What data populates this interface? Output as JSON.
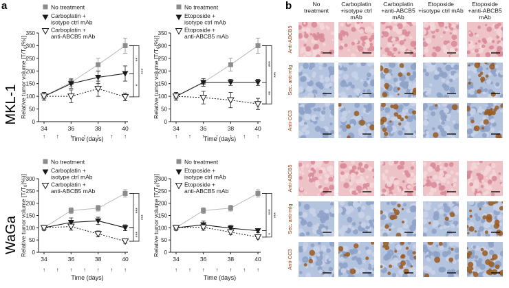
{
  "panel_labels": {
    "a": "a",
    "b": "b"
  },
  "rows": [
    {
      "name": "MKL-1"
    },
    {
      "name": "WaGa"
    }
  ],
  "axis": {
    "y_label_main": "Relative tumor volume [T/T",
    "y_label_sub": "0",
    "y_label_tail": "(%)]",
    "x_label": "Time (days)",
    "dose_marker": "↑"
  },
  "colors": {
    "no_treatment": "#8c8c8c",
    "isotype": "#1a1a1a",
    "anti": "#1a1a1a",
    "he_stain": "#e7a9b2",
    "hema_bg": "#9fb2d3",
    "dab": "#9a5a1e",
    "scale_bar": "#0a0a0a"
  },
  "significance": {
    "double": "**",
    "triple": "***",
    "single": "*"
  },
  "chart_data": [
    {
      "type": "line",
      "row": "MKL-1",
      "drug": "Carboplatin",
      "x": [
        34,
        36,
        38,
        40
      ],
      "xlim": [
        34,
        40
      ],
      "ylim": [
        0,
        350
      ],
      "xticks": [
        34,
        36,
        38,
        40
      ],
      "yticks": [
        0,
        50,
        100,
        150,
        200,
        250,
        300,
        350
      ],
      "dose_days": [
        34,
        35,
        36,
        37,
        38,
        39,
        40
      ],
      "series": [
        {
          "name": "No treatment",
          "values": [
            100,
            155,
            225,
            300
          ],
          "err": [
            15,
            15,
            25,
            30
          ],
          "marker": "square"
        },
        {
          "name": "Carboplatin + isotype ctrl mAb",
          "values": [
            100,
            150,
            175,
            190
          ],
          "err": [
            15,
            18,
            25,
            30
          ],
          "marker": "tri-down-filled"
        },
        {
          "name": "Carboplatin + anti-ABCB5 mAb",
          "values": [
            100,
            100,
            130,
            98
          ],
          "err": [
            15,
            25,
            30,
            15
          ],
          "marker": "tri-down-open"
        }
      ],
      "brackets": [
        {
          "from": "No treatment",
          "to": "Carboplatin + isotype ctrl mAb",
          "label": "**"
        },
        {
          "from": "No treatment",
          "to": "Carboplatin + anti-ABCB5 mAb",
          "label": "***"
        },
        {
          "from": "Carboplatin + isotype ctrl mAb",
          "to": "Carboplatin + anti-ABCB5 mAb",
          "label": "*"
        }
      ]
    },
    {
      "type": "line",
      "row": "MKL-1",
      "drug": "Etoposide",
      "x": [
        34,
        36,
        38,
        40
      ],
      "xlim": [
        34,
        40
      ],
      "ylim": [
        0,
        350
      ],
      "xticks": [
        34,
        36,
        38,
        40
      ],
      "yticks": [
        0,
        50,
        100,
        150,
        200,
        250,
        300,
        350
      ],
      "dose_days": [
        34,
        35,
        36,
        37,
        38,
        39,
        40
      ],
      "series": [
        {
          "name": "No treatment",
          "values": [
            100,
            155,
            225,
            300
          ],
          "err": [
            15,
            15,
            25,
            30
          ],
          "marker": "square"
        },
        {
          "name": "Etoposide + isotype ctrl mAb",
          "values": [
            100,
            155,
            155,
            155
          ],
          "err": [
            15,
            15,
            12,
            12
          ],
          "marker": "tri-down-filled"
        },
        {
          "name": "Etoposide + anti-ABCB5 mAb",
          "values": [
            100,
            95,
            85,
            70
          ],
          "err": [
            15,
            25,
            30,
            22
          ],
          "marker": "tri-down-open"
        }
      ],
      "brackets": [
        {
          "from": "No treatment",
          "to": "Etoposide + isotype ctrl mAb",
          "label": "***"
        },
        {
          "from": "No treatment",
          "to": "Etoposide + anti-ABCB5 mAb",
          "label": "***"
        },
        {
          "from": "Etoposide + isotype ctrl mAb",
          "to": "Etoposide + anti-ABCB5 mAb",
          "label": "**"
        }
      ]
    },
    {
      "type": "line",
      "row": "WaGa",
      "drug": "Carboplatin",
      "x": [
        34,
        36,
        38,
        40
      ],
      "xlim": [
        34,
        40
      ],
      "ylim": [
        0,
        300
      ],
      "xticks": [
        34,
        36,
        38,
        40
      ],
      "yticks": [
        0,
        50,
        100,
        150,
        200,
        250,
        300
      ],
      "dose_days": [
        34,
        35,
        36,
        37,
        38,
        39,
        40
      ],
      "series": [
        {
          "name": "No treatment",
          "values": [
            100,
            170,
            180,
            240
          ],
          "err": [
            10,
            12,
            12,
            15
          ],
          "marker": "square"
        },
        {
          "name": "Carboplatin + isotype ctrl mAb",
          "values": [
            100,
            122,
            128,
            100
          ],
          "err": [
            10,
            18,
            15,
            12
          ],
          "marker": "tri-down-filled"
        },
        {
          "name": "Carboplatin + anti-ABCB5 mAb",
          "values": [
            100,
            105,
            75,
            45
          ],
          "err": [
            10,
            15,
            12,
            8
          ],
          "marker": "tri-down-open"
        }
      ],
      "brackets": [
        {
          "from": "No treatment",
          "to": "Carboplatin + isotype ctrl mAb",
          "label": "***"
        },
        {
          "from": "No treatment",
          "to": "Carboplatin + anti-ABCB5 mAb",
          "label": "***"
        },
        {
          "from": "Carboplatin + isotype ctrl mAb",
          "to": "Carboplatin + anti-ABCB5 mAb",
          "label": "***"
        }
      ]
    },
    {
      "type": "line",
      "row": "WaGa",
      "drug": "Etoposide",
      "x": [
        34,
        36,
        38,
        40
      ],
      "xlim": [
        34,
        40
      ],
      "ylim": [
        0,
        300
      ],
      "xticks": [
        34,
        36,
        38,
        40
      ],
      "yticks": [
        0,
        50,
        100,
        150,
        200,
        250,
        300
      ],
      "dose_days": [
        34,
        35,
        36,
        37,
        38,
        39,
        40
      ],
      "series": [
        {
          "name": "No treatment",
          "values": [
            100,
            170,
            180,
            240
          ],
          "err": [
            10,
            12,
            12,
            15
          ],
          "marker": "square"
        },
        {
          "name": "Etoposide + isotype ctrl mAb",
          "values": [
            100,
            112,
            98,
            88
          ],
          "err": [
            10,
            15,
            12,
            8
          ],
          "marker": "tri-down-filled"
        },
        {
          "name": "Etoposide + anti-ABCB5 mAb",
          "values": [
            100,
            102,
            82,
            62
          ],
          "err": [
            10,
            12,
            10,
            8
          ],
          "marker": "tri-down-open"
        }
      ],
      "brackets": [
        {
          "from": "No treatment",
          "to": "Etoposide + isotype ctrl mAb",
          "label": "***"
        },
        {
          "from": "No treatment",
          "to": "Etoposide + anti-ABCB5 mAb",
          "label": "***"
        },
        {
          "from": "Etoposide + isotype ctrl mAb",
          "to": "Etoposide + anti-ABCB5 mAb",
          "label": "*"
        }
      ]
    }
  ],
  "legends": [
    [
      "No treatment",
      "Carboplatin +",
      "isotype ctrl mAb",
      "Carboplatin +",
      "anti-ABCB5 mAb"
    ],
    [
      "No treatment",
      "Etoposide +",
      "isotype ctrl mAb",
      "Etoposide +",
      "anti-ABCB5 mAb"
    ],
    [
      "No treatment",
      "Carboplatin +",
      "isotype ctrl mAb",
      "Carboplatin +",
      "anti-ABCB5 mAb"
    ],
    [
      "No treatment",
      "Etoposide +",
      "isotype ctrl mAb",
      "Etoposide +",
      "anti-ABCB5 mAb"
    ]
  ],
  "micrographs": {
    "column_headers": [
      [
        "No",
        "treatment"
      ],
      [
        "Carboplatin",
        "+isotype ctrl",
        "mAb"
      ],
      [
        "Carboplatin",
        "+anti-ABCB5",
        "mAb"
      ],
      [
        "Etoposide",
        "+isotype ctrl mAb"
      ],
      [
        "Etoposide",
        "+anti-ABCB5",
        "mAb"
      ]
    ],
    "row_labels": [
      "Anti-ABCB5",
      "Sec. anti-mIg",
      "Anti-CC3",
      "Anti-ABCB5",
      "Sec. anti-mIg",
      "Anti-CC3"
    ],
    "row_stains": [
      "he",
      "blue",
      "blue",
      "he",
      "blue",
      "blue"
    ],
    "dab_density": [
      [
        0,
        0,
        0,
        0,
        0
      ],
      [
        0,
        0,
        4,
        0,
        5
      ],
      [
        0,
        2,
        5,
        1,
        6
      ],
      [
        0,
        0,
        0,
        0,
        0
      ],
      [
        0,
        0,
        4,
        1,
        7
      ],
      [
        1,
        3,
        6,
        2,
        8
      ]
    ]
  }
}
